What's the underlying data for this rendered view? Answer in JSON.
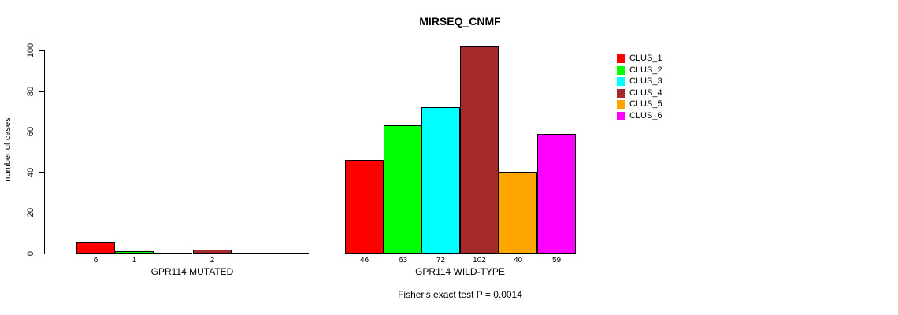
{
  "chart_data": {
    "type": "bar",
    "title": "MIRSEQ_CNMF",
    "ylabel": "number of cases",
    "ylim": [
      0,
      100
    ],
    "yticks": [
      0,
      20,
      40,
      60,
      80,
      100
    ],
    "grid": false,
    "legend_position": "right",
    "bar_label_rule": "value printed under each nonzero bar",
    "groups": [
      {
        "label": "GPR114 MUTATED",
        "values": [
          6,
          1,
          0,
          2,
          0,
          0
        ]
      },
      {
        "label": "GPR114 WILD-TYPE",
        "values": [
          46,
          63,
          72,
          102,
          40,
          59
        ]
      }
    ],
    "series_names": [
      "CLUS_1",
      "CLUS_2",
      "CLUS_3",
      "CLUS_4",
      "CLUS_5",
      "CLUS_6"
    ],
    "legend": [
      {
        "label": "CLUS_1",
        "color": "#FF0000"
      },
      {
        "label": "CLUS_2",
        "color": "#00FF00"
      },
      {
        "label": "CLUS_3",
        "color": "#00FFFF"
      },
      {
        "label": "CLUS_4",
        "color": "#A52A2A"
      },
      {
        "label": "CLUS_5",
        "color": "#FFA500"
      },
      {
        "label": "CLUS_6",
        "color": "#FF00FF"
      }
    ],
    "annotation": "Fisher's exact test P = 0.0014"
  }
}
